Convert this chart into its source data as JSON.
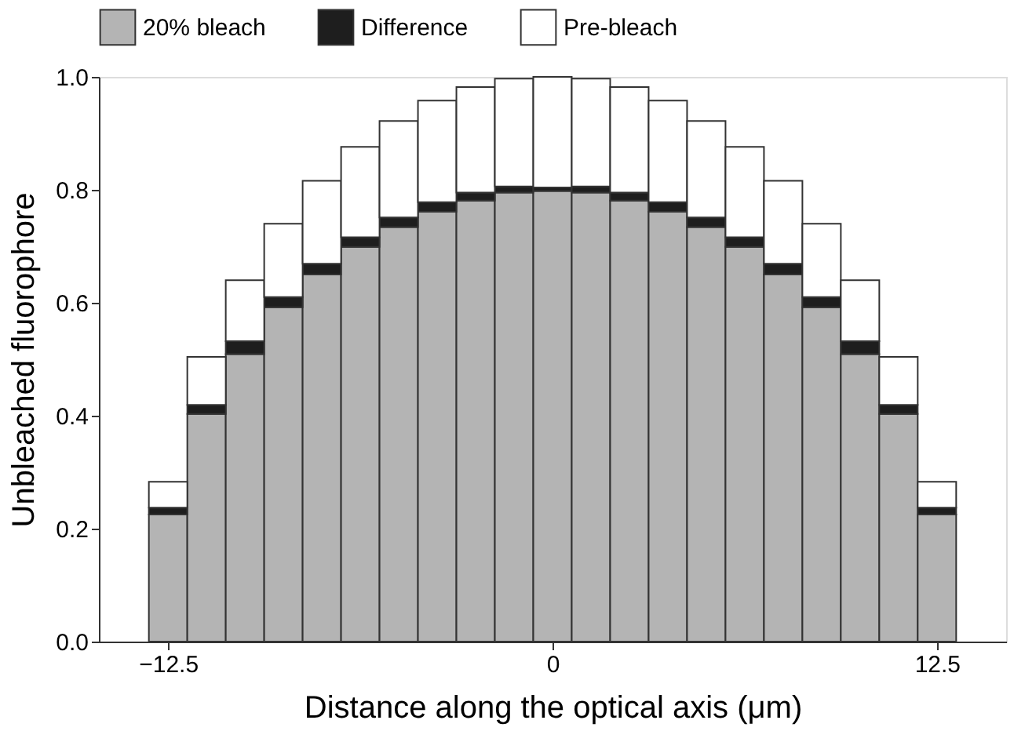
{
  "chart_data": {
    "type": "bar",
    "stacked": true,
    "xlabel": "Distance along the optical axis (μm)",
    "ylabel": "Unbleached fluorophore",
    "x": [
      -12.5,
      -11.25,
      -10,
      -8.75,
      -7.5,
      -6.25,
      -5,
      -3.75,
      -2.5,
      -1.25,
      0,
      1.25,
      2.5,
      3.75,
      5,
      6.25,
      7.5,
      8.75,
      10,
      11.25,
      12.5
    ],
    "series": [
      {
        "name": "20% bleach",
        "color": "#b4b4b4",
        "values": [
          0.225,
          0.403,
          0.509,
          0.592,
          0.65,
          0.699,
          0.734,
          0.761,
          0.781,
          0.795,
          0.798,
          0.795,
          0.781,
          0.761,
          0.734,
          0.699,
          0.65,
          0.592,
          0.509,
          0.403,
          0.225
        ]
      },
      {
        "name": "Difference",
        "color": "#1e1e1e",
        "values": [
          0.012,
          0.016,
          0.023,
          0.018,
          0.019,
          0.017,
          0.017,
          0.017,
          0.014,
          0.011,
          0.006,
          0.011,
          0.014,
          0.017,
          0.017,
          0.017,
          0.019,
          0.018,
          0.023,
          0.016,
          0.012
        ]
      },
      {
        "name": "Pre-bleach",
        "color": "#ffffff",
        "values": [
          0.046,
          0.085,
          0.108,
          0.13,
          0.147,
          0.16,
          0.171,
          0.18,
          0.187,
          0.191,
          0.196,
          0.191,
          0.187,
          0.18,
          0.171,
          0.16,
          0.147,
          0.13,
          0.108,
          0.085,
          0.046
        ]
      }
    ],
    "xlim": [
      -14.75,
      14.75
    ],
    "xticks": [
      {
        "value": -12.5,
        "label": "−12.5"
      },
      0,
      12.5
    ],
    "ylim": [
      0,
      1.0
    ],
    "yticks": [
      {
        "value": 0,
        "label": "0.0"
      },
      {
        "value": 0.2,
        "label": "0.2"
      },
      {
        "value": 0.4,
        "label": "0.4"
      },
      {
        "value": 0.6,
        "label": "0.6"
      },
      {
        "value": 0.8,
        "label": "0.8"
      },
      {
        "value": 1.0,
        "label": "1.0"
      }
    ],
    "grid": false,
    "legend": "top"
  }
}
